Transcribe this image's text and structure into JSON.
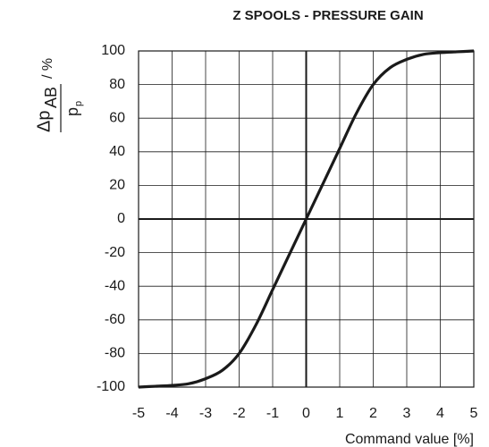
{
  "chart_data": {
    "type": "line",
    "title": "Z SPOOLS - PRESSURE GAIN",
    "xlabel": "Command value [%]",
    "ylabel": {
      "numerator": "Δp",
      "numerator_sub": "AB",
      "unit": "/ %",
      "denominator": "p",
      "denominator_sub": "p"
    },
    "x": [
      -5,
      -4.5,
      -4,
      -3.5,
      -3,
      -2.5,
      -2,
      -1.5,
      -1,
      -0.5,
      0,
      0.5,
      1,
      1.5,
      2,
      2.5,
      3,
      3.5,
      4,
      4.5,
      5
    ],
    "values": [
      -100,
      -99.5,
      -99,
      -98,
      -95,
      -90,
      -80,
      -63,
      -42,
      -21,
      0,
      21,
      42,
      63,
      80,
      90,
      95,
      98,
      99,
      99.5,
      100
    ],
    "color": "#1a1a1a",
    "xlim": [
      -5,
      5
    ],
    "xticks": [
      -5,
      -4,
      -3,
      -2,
      -1,
      0,
      1,
      2,
      3,
      4,
      5
    ],
    "ylim": [
      -100,
      100
    ],
    "yticks": [
      -100,
      -80,
      -60,
      -40,
      -20,
      0,
      20,
      40,
      60,
      80,
      100
    ],
    "grid": true
  }
}
